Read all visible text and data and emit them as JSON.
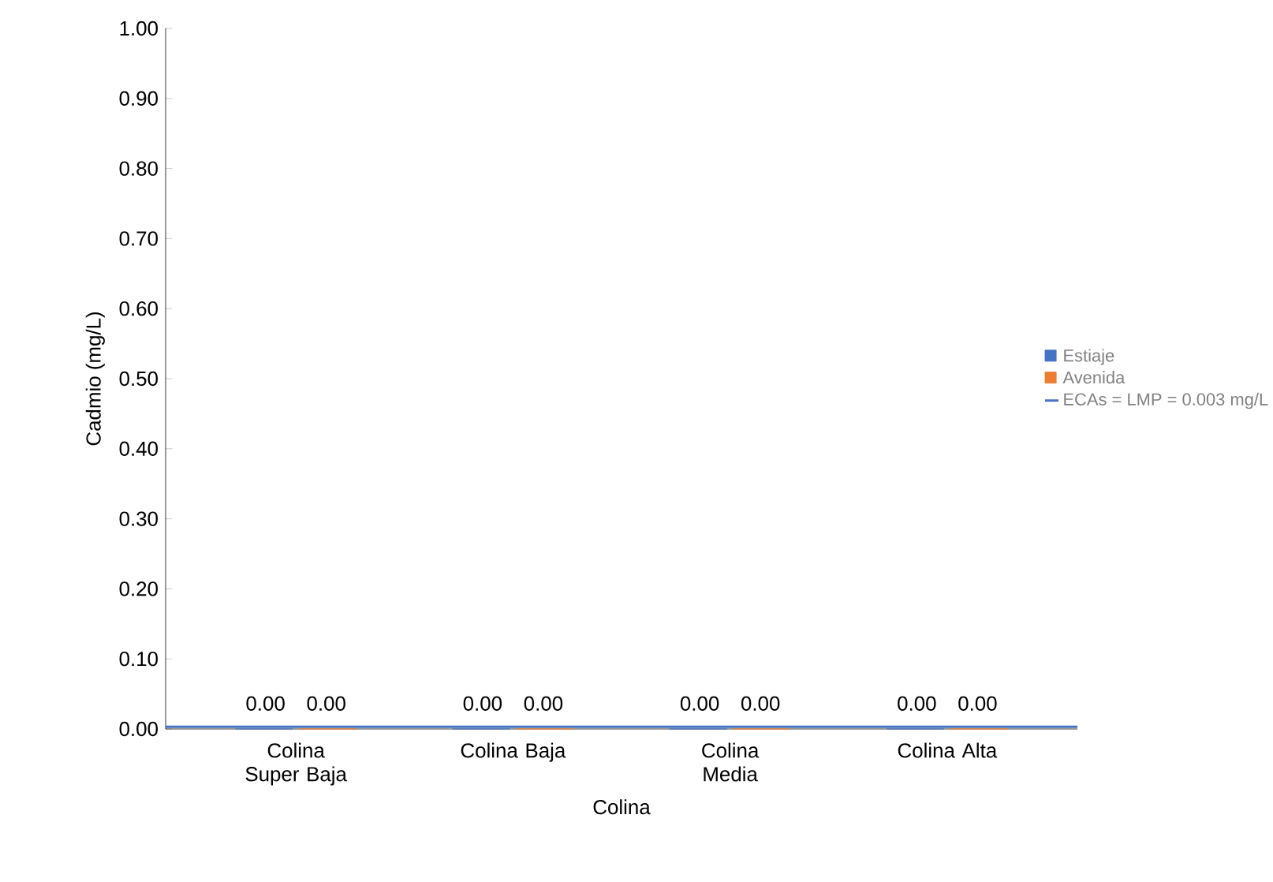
{
  "chart_data": {
    "type": "bar",
    "xlabel": "Colina",
    "ylabel": "Cadmio (mg/L)",
    "categories": [
      "Colina Super Baja",
      "Colina Baja",
      "Colina Media",
      "Colina Alta"
    ],
    "series": [
      {
        "name": "Estiaje",
        "color": "#4472c4",
        "values": [
          0,
          0,
          0,
          0
        ],
        "value_labels": [
          "0.00",
          "0.00",
          "0.00",
          "0.00"
        ]
      },
      {
        "name": "Avenida",
        "color": "#ed7d31",
        "values": [
          0,
          0,
          0,
          0
        ],
        "value_labels": [
          "0.00",
          "0.00",
          "0.00",
          "0.00"
        ]
      }
    ],
    "ylim": [
      0,
      1
    ],
    "yticks": [
      {
        "value": 0,
        "label": "0.00"
      },
      {
        "value": 0.1,
        "label": "0.10"
      },
      {
        "value": 0.2,
        "label": "0.20"
      },
      {
        "value": 0.3,
        "label": "0.30"
      },
      {
        "value": 0.4,
        "label": "0.40"
      },
      {
        "value": 0.5,
        "label": "0.50"
      },
      {
        "value": 0.6,
        "label": "0.60"
      },
      {
        "value": 0.7,
        "label": "0.70"
      },
      {
        "value": 0.8,
        "label": "0.80"
      },
      {
        "value": 0.9,
        "label": "0.90"
      },
      {
        "value": 1,
        "label": "1.00"
      }
    ],
    "ref_lines": [
      {
        "axis": "y",
        "value": 0.003,
        "label": "ECAs = LMP = 0.003 mg/L",
        "color": "#4472c4"
      }
    ],
    "legend": "right",
    "grid": false
  }
}
